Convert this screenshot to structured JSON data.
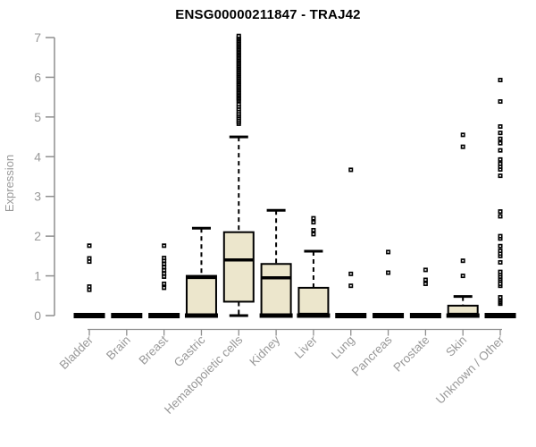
{
  "title": "ENSG00000211847 - TRAJ42",
  "chart_data": {
    "type": "boxplot",
    "title": "ENSG00000211847 - TRAJ42",
    "xlabel": "",
    "ylabel": "Expression",
    "ylim": [
      0,
      7
    ],
    "yticks": [
      0,
      1,
      2,
      3,
      4,
      5,
      6,
      7
    ],
    "grid": false,
    "legend": "none",
    "outlier_marker": "small-open-square",
    "colors": {
      "box_fill": "#ece6cc",
      "box_border": "#000000",
      "median": "#000000",
      "whisker": "#000000",
      "outlier": "#000000",
      "axis": "#8f8f8f",
      "tick_text": "#999999",
      "title_text": "#000000",
      "background": "#ffffff"
    },
    "categories": [
      "Bladder",
      "Brain",
      "Breast",
      "Gastric",
      "Hematopoietic cells",
      "Kidney",
      "Liver",
      "Lung",
      "Pancreas",
      "Prostate",
      "Skin",
      "Unknown / Other"
    ],
    "series": [
      {
        "name": "Bladder",
        "low": 0,
        "q1": 0,
        "median": 0,
        "q3": 0,
        "high": 0,
        "outliers": [
          0.65,
          0.73,
          1.36,
          1.44,
          1.76
        ]
      },
      {
        "name": "Brain",
        "low": 0,
        "q1": 0,
        "median": 0,
        "q3": 0,
        "high": 0,
        "outliers": []
      },
      {
        "name": "Breast",
        "low": 0,
        "q1": 0,
        "median": 0,
        "q3": 0,
        "high": 0,
        "outliers": [
          0.7,
          0.8,
          0.98,
          1.06,
          1.14,
          1.22,
          1.3,
          1.38,
          1.45,
          1.76
        ]
      },
      {
        "name": "Gastric",
        "low": 0,
        "q1": 0,
        "median": 0.96,
        "q3": 1.0,
        "high": 2.2,
        "outliers": []
      },
      {
        "name": "Hematopoietic cells",
        "low": 0,
        "q1": 0.35,
        "median": 1.4,
        "q3": 2.1,
        "high": 4.5,
        "outliers": [
          4.83,
          4.88,
          4.93,
          4.98,
          5.03,
          5.08,
          5.14,
          5.2,
          5.26,
          5.32,
          5.4,
          5.44,
          5.48,
          5.52,
          5.56,
          5.6,
          5.64,
          5.68,
          5.72,
          5.76,
          5.8,
          5.84,
          5.88,
          5.92,
          5.96,
          6.0,
          6.04,
          6.08,
          6.12,
          6.16,
          6.2,
          6.24,
          6.28,
          6.32,
          6.36,
          6.4,
          6.44,
          6.48,
          6.52,
          6.56,
          6.6,
          6.64,
          6.68,
          6.72,
          6.76,
          6.8,
          6.84,
          6.88,
          6.92,
          6.96,
          7.0,
          7.04
        ]
      },
      {
        "name": "Kidney",
        "low": 0,
        "q1": 0.03,
        "median": 0.95,
        "q3": 1.3,
        "high": 2.65,
        "outliers": []
      },
      {
        "name": "Liver",
        "low": 0,
        "q1": 0,
        "median": 0.03,
        "q3": 0.7,
        "high": 1.62,
        "outliers": [
          2.05,
          2.15,
          2.35,
          2.45
        ]
      },
      {
        "name": "Lung",
        "low": 0,
        "q1": 0,
        "median": 0,
        "q3": 0,
        "high": 0,
        "outliers": [
          0.75,
          1.05,
          3.67
        ]
      },
      {
        "name": "Pancreas",
        "low": 0,
        "q1": 0,
        "median": 0,
        "q3": 0,
        "high": 0,
        "outliers": [
          1.08,
          1.6
        ]
      },
      {
        "name": "Prostate",
        "low": 0,
        "q1": 0,
        "median": 0,
        "q3": 0,
        "high": 0,
        "outliers": [
          0.8,
          0.9,
          1.15
        ]
      },
      {
        "name": "Skin",
        "low": 0,
        "q1": 0,
        "median": 0.03,
        "q3": 0.25,
        "high": 0.48,
        "outliers": [
          1.0,
          1.38,
          4.25,
          4.55
        ]
      },
      {
        "name": "Unknown / Other",
        "low": 0,
        "q1": 0,
        "median": 0,
        "q3": 0,
        "high": 0,
        "outliers": [
          0.3,
          0.34,
          0.38,
          0.42,
          0.46,
          0.75,
          0.8,
          0.88,
          0.93,
          0.98,
          1.04,
          1.1,
          1.34,
          1.5,
          1.56,
          1.63,
          1.75,
          1.94,
          2.0,
          2.5,
          2.62,
          3.52,
          3.68,
          3.75,
          3.82,
          3.93,
          4.16,
          4.34,
          4.45,
          4.6,
          4.76,
          5.39,
          5.93
        ]
      }
    ]
  }
}
